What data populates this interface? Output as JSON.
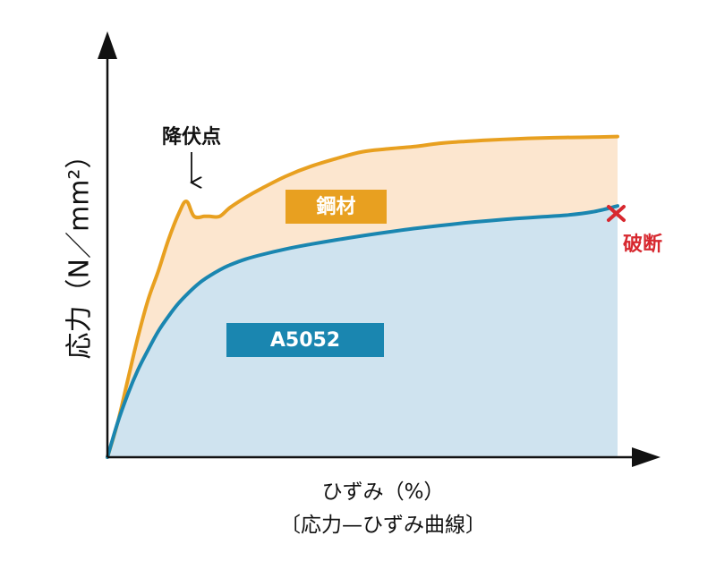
{
  "chart_data": {
    "type": "area",
    "title": "〔応力—ひずみ曲線〕",
    "xlabel": "ひずみ（%）",
    "ylabel": "応力（N／mm²）",
    "grid": false,
    "series": [
      {
        "name": "鋼材",
        "color": "#E8A020",
        "fill": "#FCE6CF",
        "x": [
          0,
          2,
          4,
          6,
          8,
          10,
          12,
          14,
          15.5,
          17,
          19,
          20,
          22,
          24,
          27,
          30,
          35,
          40,
          45,
          50,
          55,
          60,
          65,
          70,
          75,
          80,
          85,
          90,
          95,
          100
        ],
        "y": [
          0,
          12,
          27,
          42,
          55,
          65,
          76,
          85,
          89.2,
          84,
          84,
          84,
          84,
          87,
          90.5,
          93.5,
          98,
          101.5,
          104.2,
          106.5,
          107.5,
          108.3,
          109.4,
          110.1,
          110.6,
          111,
          111.3,
          111.5,
          111.6,
          111.8
        ]
      },
      {
        "name": "A5052",
        "color": "#1A86B0",
        "fill": "#CFE3EF",
        "x": [
          0,
          2,
          4,
          6,
          8,
          10,
          12,
          14,
          16,
          18,
          20,
          22,
          24,
          27,
          30,
          35,
          40,
          45,
          50,
          55,
          60,
          65,
          70,
          75,
          80,
          85,
          90,
          95,
          100
        ],
        "y": [
          0,
          12,
          22,
          30.5,
          37.5,
          44,
          49.2,
          53.8,
          57.5,
          60.7,
          63.2,
          65.3,
          67,
          69,
          70.5,
          72.6,
          74.3,
          75.8,
          77.2,
          78.5,
          79.7,
          80.7,
          81.7,
          82.5,
          83.2,
          83.8,
          84.4,
          85.5,
          87.6
        ]
      }
    ],
    "annotations": {
      "yield_point": "降伏点",
      "fracture": "破断"
    }
  }
}
